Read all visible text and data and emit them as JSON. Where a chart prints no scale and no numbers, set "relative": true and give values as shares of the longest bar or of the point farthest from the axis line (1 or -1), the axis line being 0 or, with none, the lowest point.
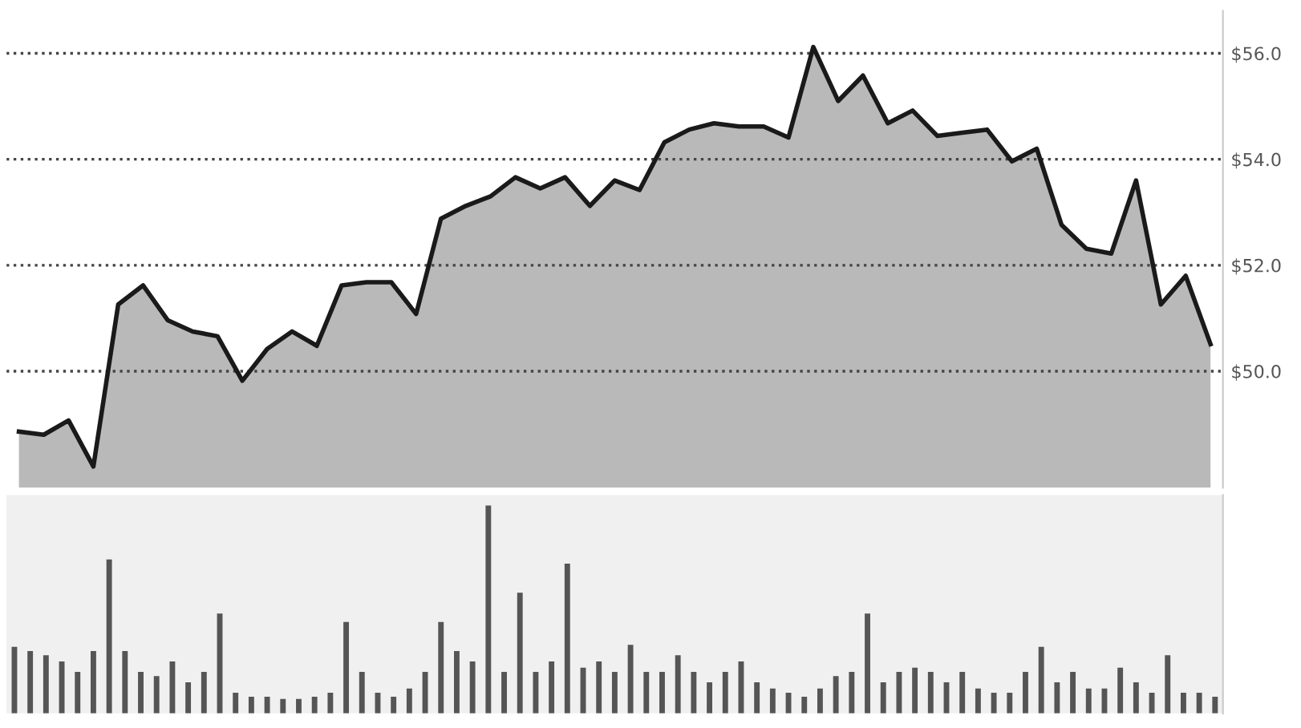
{
  "chart_data": [
    {
      "type": "area",
      "categories": [
        null,
        null,
        null,
        null,
        null,
        null,
        null,
        null,
        null,
        null,
        null,
        null,
        null,
        null,
        null,
        null,
        null,
        null,
        null,
        null,
        null,
        null,
        null,
        null,
        null,
        null,
        null,
        null,
        null,
        null,
        null,
        null,
        null,
        null,
        null,
        null,
        null,
        null,
        null,
        null,
        null,
        null,
        null,
        null,
        null,
        null,
        null,
        null,
        null
      ],
      "series": [
        {
          "color": "#1a1a1a",
          "values": [
            48.86,
            48.8,
            49.07,
            48.2,
            51.26,
            51.62,
            50.96,
            50.75,
            50.66,
            49.82,
            50.42,
            50.75,
            50.48,
            51.62,
            51.68,
            51.68,
            51.08,
            52.88,
            53.12,
            53.3,
            53.66,
            53.45,
            53.66,
            53.12,
            53.6,
            53.42,
            54.32,
            54.56,
            54.68,
            54.62,
            54.62,
            54.41,
            56.12,
            55.1,
            55.58,
            54.68,
            54.92,
            54.44,
            54.5,
            54.56,
            53.96,
            54.2,
            52.76,
            52.31,
            52.22,
            53.6,
            51.26,
            51.8,
            50.51
          ]
        }
      ],
      "ylim": [
        47.8,
        56.8
      ],
      "yticks": [
        {
          "value": 50,
          "label": "$50.0"
        },
        {
          "value": 52,
          "label": "$52.0"
        },
        {
          "value": 54,
          "label": "$54.0"
        },
        {
          "value": 56,
          "label": "$56.0"
        }
      ],
      "grid": "y",
      "tick_labels": "y"
    },
    {
      "type": "bar",
      "relative": true,
      "categories": [
        null,
        null,
        null,
        null,
        null,
        null,
        null,
        null,
        null,
        null,
        null,
        null,
        null,
        null,
        null,
        null,
        null,
        null,
        null,
        null,
        null,
        null,
        null,
        null,
        null,
        null,
        null,
        null,
        null,
        null,
        null,
        null,
        null,
        null,
        null,
        null,
        null,
        null,
        null,
        null,
        null,
        null,
        null,
        null,
        null,
        null,
        null,
        null,
        null,
        null,
        null,
        null,
        null,
        null,
        null,
        null,
        null,
        null,
        null,
        null,
        null,
        null,
        null,
        null,
        null,
        null,
        null,
        null,
        null,
        null,
        null,
        null,
        null,
        null,
        null,
        null,
        null
      ],
      "values": [
        0.32,
        0.3,
        0.28,
        0.25,
        0.2,
        0.3,
        0.74,
        0.3,
        0.2,
        0.18,
        0.25,
        0.15,
        0.2,
        0.48,
        0.1,
        0.08,
        0.08,
        0.07,
        0.07,
        0.08,
        0.1,
        0.44,
        0.2,
        0.1,
        0.08,
        0.12,
        0.2,
        0.44,
        0.3,
        0.25,
        1.0,
        0.2,
        0.58,
        0.2,
        0.25,
        0.72,
        0.22,
        0.25,
        0.2,
        0.33,
        0.2,
        0.2,
        0.28,
        0.2,
        0.15,
        0.2,
        0.25,
        0.15,
        0.12,
        0.1,
        0.08,
        0.12,
        0.18,
        0.2,
        0.48,
        0.15,
        0.2,
        0.22,
        0.2,
        0.15,
        0.2,
        0.12,
        0.1,
        0.1,
        0.2,
        0.32,
        0.15,
        0.2,
        0.12,
        0.12,
        0.22,
        0.15,
        0.1,
        0.28,
        0.1,
        0.1,
        0.08
      ],
      "color": "#555555"
    }
  ]
}
